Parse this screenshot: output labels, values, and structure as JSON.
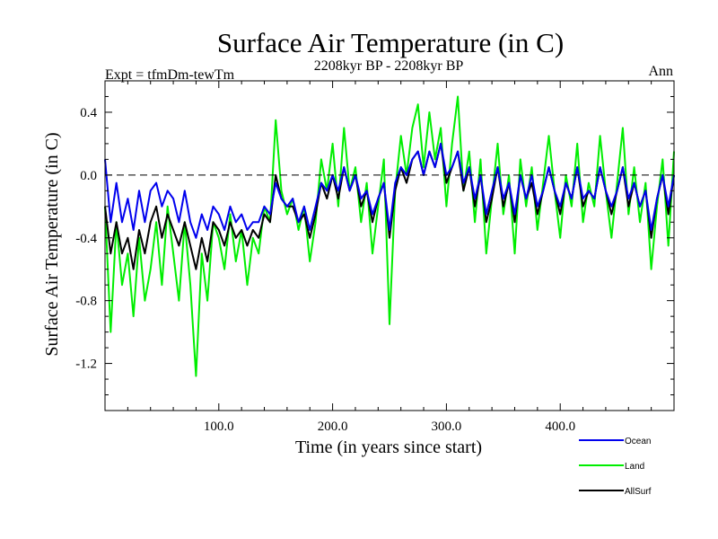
{
  "chart_data": {
    "type": "line",
    "title": "Surface Air Temperature (in C)",
    "subtitle": "2208kyr BP - 2208kyr BP",
    "left_label": "Expt = tfmDm-tewTm",
    "right_label": "Ann",
    "xlabel": "Time (in years since start)",
    "ylabel": "Surface Air Temperature (in C)",
    "xlim": [
      0,
      500
    ],
    "ylim": [
      -1.5,
      0.6
    ],
    "x_ticks": [
      100,
      200,
      300,
      400
    ],
    "x_tick_labels": [
      "100.0",
      "200.0",
      "300.0",
      "400.0"
    ],
    "y_ticks": [
      -1.2,
      -0.8,
      -0.4,
      0.0,
      0.4
    ],
    "y_tick_labels": [
      "-1.2",
      "-0.8",
      "-0.4",
      "0.0",
      "0.4"
    ],
    "zero_line": "dashed",
    "series": [
      {
        "name": "Land",
        "color": "#00ee00",
        "x": [
          0,
          5,
          10,
          15,
          20,
          25,
          30,
          35,
          40,
          45,
          50,
          55,
          60,
          65,
          70,
          75,
          80,
          85,
          90,
          95,
          100,
          105,
          110,
          115,
          120,
          125,
          130,
          135,
          140,
          145,
          150,
          155,
          160,
          165,
          170,
          175,
          180,
          185,
          190,
          195,
          200,
          205,
          210,
          215,
          220,
          225,
          230,
          235,
          240,
          245,
          250,
          255,
          260,
          265,
          270,
          275,
          280,
          285,
          290,
          295,
          300,
          305,
          310,
          315,
          320,
          325,
          330,
          335,
          340,
          345,
          350,
          355,
          360,
          365,
          370,
          375,
          380,
          385,
          390,
          395,
          400,
          405,
          410,
          415,
          420,
          425,
          430,
          435,
          440,
          445,
          450,
          455,
          460,
          465,
          470,
          475,
          480,
          485,
          490,
          495,
          500
        ],
        "values": [
          -0.2,
          -1.0,
          -0.3,
          -0.7,
          -0.5,
          -0.9,
          -0.4,
          -0.8,
          -0.6,
          -0.3,
          -0.7,
          -0.2,
          -0.5,
          -0.8,
          -0.3,
          -0.7,
          -1.28,
          -0.5,
          -0.8,
          -0.3,
          -0.4,
          -0.6,
          -0.25,
          -0.55,
          -0.35,
          -0.7,
          -0.4,
          -0.5,
          -0.2,
          -0.3,
          0.35,
          -0.1,
          -0.25,
          -0.15,
          -0.35,
          -0.2,
          -0.55,
          -0.3,
          0.1,
          -0.1,
          0.2,
          -0.2,
          0.3,
          -0.1,
          0.05,
          -0.3,
          -0.05,
          -0.5,
          -0.2,
          0.1,
          -0.95,
          -0.1,
          0.25,
          0.0,
          0.3,
          0.45,
          0.05,
          0.4,
          0.1,
          0.3,
          -0.2,
          0.2,
          0.5,
          -0.1,
          0.15,
          -0.3,
          0.1,
          -0.5,
          -0.15,
          0.2,
          -0.25,
          0.0,
          -0.5,
          0.1,
          -0.2,
          0.05,
          -0.35,
          -0.05,
          0.25,
          -0.1,
          -0.4,
          0.0,
          -0.2,
          0.2,
          -0.3,
          -0.05,
          -0.2,
          0.25,
          -0.1,
          -0.4,
          -0.05,
          0.3,
          -0.25,
          0.05,
          -0.3,
          -0.05,
          -0.6,
          -0.2,
          0.1,
          -0.45,
          0.15
        ]
      },
      {
        "name": "AllSurf",
        "color": "#000000",
        "x": [
          0,
          5,
          10,
          15,
          20,
          25,
          30,
          35,
          40,
          45,
          50,
          55,
          60,
          65,
          70,
          75,
          80,
          85,
          90,
          95,
          100,
          105,
          110,
          115,
          120,
          125,
          130,
          135,
          140,
          145,
          150,
          155,
          160,
          165,
          170,
          175,
          180,
          185,
          190,
          195,
          200,
          205,
          210,
          215,
          220,
          225,
          230,
          235,
          240,
          245,
          250,
          255,
          260,
          265,
          270,
          275,
          280,
          285,
          290,
          295,
          300,
          305,
          310,
          315,
          320,
          325,
          330,
          335,
          340,
          345,
          350,
          355,
          360,
          365,
          370,
          375,
          380,
          385,
          390,
          395,
          400,
          405,
          410,
          415,
          420,
          425,
          430,
          435,
          440,
          445,
          450,
          455,
          460,
          465,
          470,
          475,
          480,
          485,
          490,
          495,
          500
        ],
        "values": [
          -0.2,
          -0.5,
          -0.3,
          -0.5,
          -0.4,
          -0.6,
          -0.35,
          -0.5,
          -0.3,
          -0.2,
          -0.4,
          -0.25,
          -0.35,
          -0.45,
          -0.3,
          -0.45,
          -0.6,
          -0.4,
          -0.55,
          -0.3,
          -0.35,
          -0.45,
          -0.3,
          -0.4,
          -0.35,
          -0.45,
          -0.35,
          -0.4,
          -0.25,
          -0.3,
          0.0,
          -0.15,
          -0.2,
          -0.2,
          -0.3,
          -0.25,
          -0.4,
          -0.25,
          -0.05,
          -0.15,
          0.0,
          -0.15,
          0.05,
          -0.1,
          0.0,
          -0.2,
          -0.1,
          -0.3,
          -0.15,
          -0.05,
          -0.4,
          -0.1,
          0.05,
          -0.05,
          0.1,
          0.15,
          0.0,
          0.15,
          0.05,
          0.2,
          -0.05,
          0.05,
          0.15,
          -0.1,
          0.05,
          -0.2,
          0.0,
          -0.3,
          -0.15,
          0.05,
          -0.2,
          -0.05,
          -0.3,
          0.0,
          -0.15,
          -0.05,
          -0.25,
          -0.1,
          0.05,
          -0.1,
          -0.25,
          -0.05,
          -0.15,
          0.05,
          -0.2,
          -0.1,
          -0.15,
          0.05,
          -0.1,
          -0.25,
          -0.1,
          0.05,
          -0.2,
          -0.05,
          -0.2,
          -0.1,
          -0.4,
          -0.15,
          0.0,
          -0.25,
          0.0
        ]
      },
      {
        "name": "Ocean",
        "color": "#0000ee",
        "x": [
          0,
          5,
          10,
          15,
          20,
          25,
          30,
          35,
          40,
          45,
          50,
          55,
          60,
          65,
          70,
          75,
          80,
          85,
          90,
          95,
          100,
          105,
          110,
          115,
          120,
          125,
          130,
          135,
          140,
          145,
          150,
          155,
          160,
          165,
          170,
          175,
          180,
          185,
          190,
          195,
          200,
          205,
          210,
          215,
          220,
          225,
          230,
          235,
          240,
          245,
          250,
          255,
          260,
          265,
          270,
          275,
          280,
          285,
          290,
          295,
          300,
          305,
          310,
          315,
          320,
          325,
          330,
          335,
          340,
          345,
          350,
          355,
          360,
          365,
          370,
          375,
          380,
          385,
          390,
          395,
          400,
          405,
          410,
          415,
          420,
          425,
          430,
          435,
          440,
          445,
          450,
          455,
          460,
          465,
          470,
          475,
          480,
          485,
          490,
          495,
          500
        ],
        "values": [
          0.1,
          -0.3,
          -0.05,
          -0.3,
          -0.15,
          -0.35,
          -0.1,
          -0.3,
          -0.1,
          -0.05,
          -0.2,
          -0.1,
          -0.15,
          -0.3,
          -0.1,
          -0.3,
          -0.4,
          -0.25,
          -0.35,
          -0.2,
          -0.25,
          -0.35,
          -0.2,
          -0.3,
          -0.25,
          -0.35,
          -0.3,
          -0.3,
          -0.2,
          -0.25,
          -0.05,
          -0.15,
          -0.2,
          -0.15,
          -0.3,
          -0.2,
          -0.35,
          -0.2,
          -0.05,
          -0.1,
          0.0,
          -0.1,
          0.05,
          -0.1,
          0.0,
          -0.15,
          -0.1,
          -0.25,
          -0.15,
          -0.05,
          -0.35,
          -0.05,
          0.05,
          0.0,
          0.1,
          0.15,
          0.0,
          0.15,
          0.05,
          0.2,
          0.0,
          0.05,
          0.15,
          -0.05,
          0.05,
          -0.15,
          0.0,
          -0.25,
          -0.1,
          0.05,
          -0.15,
          -0.05,
          -0.25,
          0.0,
          -0.15,
          0.0,
          -0.2,
          -0.1,
          0.05,
          -0.1,
          -0.2,
          -0.05,
          -0.15,
          0.05,
          -0.15,
          -0.1,
          -0.15,
          0.05,
          -0.1,
          -0.2,
          -0.1,
          0.05,
          -0.15,
          -0.05,
          -0.2,
          -0.1,
          -0.35,
          -0.15,
          0.0,
          -0.2,
          0.0
        ]
      }
    ],
    "legend": {
      "placement": "bottom-right",
      "entries": [
        {
          "name": "Ocean",
          "color": "#0000ee"
        },
        {
          "name": "Land",
          "color": "#00ee00"
        },
        {
          "name": "AllSurf",
          "color": "#000000"
        }
      ]
    }
  }
}
